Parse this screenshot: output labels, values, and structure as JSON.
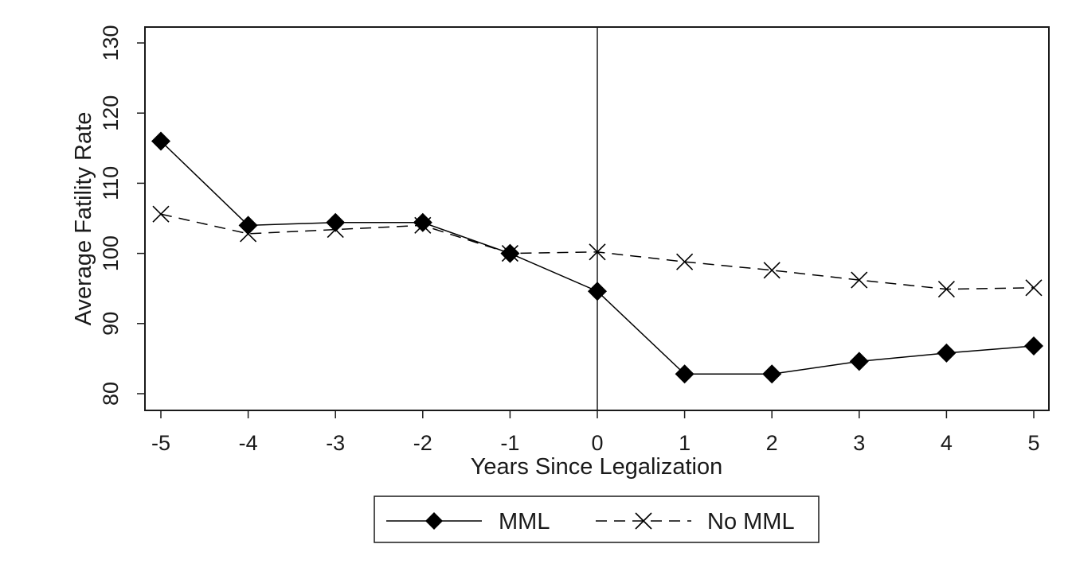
{
  "chart_data": {
    "type": "line",
    "title": "",
    "xlabel": "Years Since Legalization",
    "ylabel": "Average Fatility Rate",
    "x": [
      -5,
      -4,
      -3,
      -2,
      -1,
      0,
      1,
      2,
      3,
      4,
      5
    ],
    "xlim": [
      -5,
      5
    ],
    "ylim": [
      80,
      130
    ],
    "yticks": [
      80,
      90,
      100,
      110,
      120,
      130
    ],
    "xticks": [
      -5,
      -4,
      -3,
      -2,
      -1,
      0,
      1,
      2,
      3,
      4,
      5
    ],
    "reference_line_x": 0,
    "grid": false,
    "legend_position": "bottom-center",
    "series": [
      {
        "name": "MML",
        "line_style": "solid",
        "marker": "diamond",
        "color": "#000000",
        "values": [
          116.0,
          104.0,
          104.4,
          104.4,
          100.0,
          94.6,
          82.8,
          82.8,
          84.6,
          85.8,
          86.8
        ]
      },
      {
        "name": "No MML",
        "line_style": "dashed",
        "marker": "x",
        "color": "#000000",
        "values": [
          105.6,
          102.8,
          103.4,
          104.0,
          100.0,
          100.2,
          98.8,
          97.6,
          96.2,
          94.9,
          95.1
        ]
      }
    ]
  }
}
